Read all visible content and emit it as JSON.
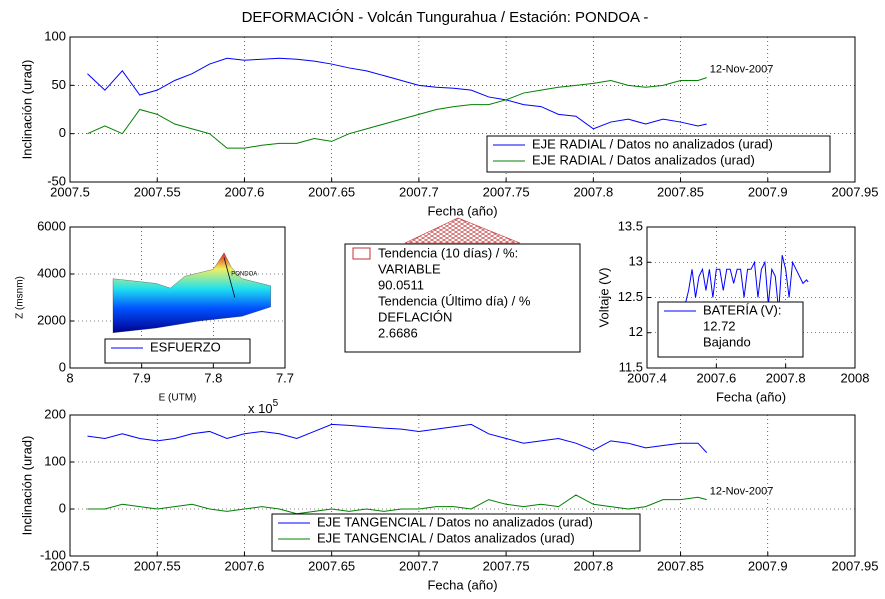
{
  "title": "DEFORMACIÓN - Volcán Tungurahua  /  Estación: PONDOA -",
  "info_box": {
    "legend": "Tendencia (10 días) / %:",
    "lines": [
      "VARIABLE",
      90.0511,
      "Tendencia (Último día) / %",
      "DEFLACIÓN",
      2.6686
    ]
  },
  "chart_data": [
    {
      "type": "line",
      "xlabel": "Fecha (año)",
      "ylabel": "Inclinación (urad)",
      "xlim": [
        2007.5,
        2007.95
      ],
      "xticks": [
        2007.5,
        2007.55,
        2007.6,
        2007.65,
        2007.7,
        2007.75,
        2007.8,
        2007.85,
        2007.9,
        2007.95
      ],
      "ylim": [
        -50,
        100
      ],
      "yticks": [
        -50,
        0,
        50,
        100
      ],
      "grid": true,
      "legend": "lower right",
      "annotation": "12-Nov-2007",
      "x": [
        2007.51,
        2007.52,
        2007.53,
        2007.54,
        2007.55,
        2007.56,
        2007.57,
        2007.58,
        2007.59,
        2007.6,
        2007.61,
        2007.62,
        2007.63,
        2007.64,
        2007.65,
        2007.66,
        2007.67,
        2007.68,
        2007.69,
        2007.7,
        2007.71,
        2007.72,
        2007.73,
        2007.74,
        2007.75,
        2007.76,
        2007.77,
        2007.78,
        2007.79,
        2007.8,
        2007.81,
        2007.82,
        2007.83,
        2007.84,
        2007.85,
        2007.86,
        2007.865
      ],
      "series": [
        {
          "name": "EJE RADIAL / Datos no analizados (urad)",
          "color": "#0000ff",
          "values": [
            62,
            45,
            65,
            40,
            45,
            55,
            62,
            72,
            78,
            76,
            77,
            78,
            77,
            75,
            72,
            68,
            65,
            60,
            55,
            50,
            48,
            47,
            45,
            38,
            35,
            30,
            28,
            20,
            18,
            5,
            12,
            15,
            10,
            15,
            12,
            8,
            10
          ]
        },
        {
          "name": "EJE RADIAL / Datos analizados (urad)",
          "color": "#008000",
          "values": [
            0,
            8,
            0,
            25,
            20,
            10,
            5,
            0,
            -15,
            -15,
            -12,
            -10,
            -10,
            -5,
            -8,
            0,
            5,
            10,
            15,
            20,
            25,
            28,
            30,
            30,
            35,
            42,
            45,
            48,
            50,
            52,
            55,
            50,
            48,
            50,
            55,
            55,
            58
          ]
        }
      ]
    },
    {
      "type": "surface",
      "xlabel": "E (UTM)",
      "ylabel": "Z (msnm)",
      "xlim": [
        8,
        7.7
      ],
      "xticks": [
        8,
        7.9,
        7.8,
        7.7
      ],
      "x_multiplier": {
        "base": "x 10",
        "exponent": "5"
      },
      "ylim": [
        0,
        6000
      ],
      "yticks": [
        0,
        2000,
        4000,
        6000
      ],
      "grid": true,
      "legend": "lower center",
      "annotation": "PONDOA",
      "series": [
        {
          "name": "ESFUERZO",
          "color": "#0000ff"
        }
      ]
    },
    {
      "type": "line",
      "xlabel": "Fecha (año)",
      "ylabel": "Voltaje (V)",
      "xlim": [
        2007.4,
        2008
      ],
      "xticks": [
        2007.4,
        2007.6,
        2007.8,
        2008
      ],
      "ylim": [
        11.5,
        13.5
      ],
      "yticks": [
        11.5,
        12,
        12.5,
        13,
        13.5
      ],
      "grid": true,
      "legend": "lower left",
      "status_lines": [
        12.72,
        "Bajando"
      ],
      "x": [
        2007.51,
        2007.52,
        2007.53,
        2007.54,
        2007.55,
        2007.56,
        2007.57,
        2007.58,
        2007.59,
        2007.6,
        2007.61,
        2007.62,
        2007.63,
        2007.64,
        2007.65,
        2007.66,
        2007.67,
        2007.68,
        2007.69,
        2007.7,
        2007.71,
        2007.72,
        2007.73,
        2007.74,
        2007.75,
        2007.76,
        2007.77,
        2007.78,
        2007.79,
        2007.8,
        2007.81,
        2007.82,
        2007.83,
        2007.84,
        2007.85,
        2007.86,
        2007.865
      ],
      "series": [
        {
          "name": "BATERÍA (V):",
          "color": "#0000ff",
          "values": [
            12.4,
            12.6,
            12.9,
            12.5,
            12.8,
            12.9,
            12.6,
            12.9,
            12.5,
            12.9,
            12.9,
            12.6,
            12.9,
            12.9,
            12.7,
            12.9,
            12.9,
            12.5,
            12.9,
            12.9,
            13.0,
            12.5,
            12.9,
            13.0,
            12.4,
            12.9,
            12.8,
            12.3,
            13.1,
            12.9,
            12.5,
            13.0,
            12.9,
            12.8,
            12.7,
            12.75,
            12.72
          ]
        }
      ]
    },
    {
      "type": "line",
      "xlabel": "Fecha (año)",
      "ylabel": "Inclinación (urad)",
      "xlim": [
        2007.5,
        2007.95
      ],
      "xticks": [
        2007.5,
        2007.55,
        2007.6,
        2007.65,
        2007.7,
        2007.75,
        2007.8,
        2007.85,
        2007.9,
        2007.95
      ],
      "ylim": [
        -100,
        200
      ],
      "yticks": [
        -100,
        0,
        100,
        200
      ],
      "grid": true,
      "legend": "lower center",
      "annotation": "12-Nov-2007",
      "x": [
        2007.51,
        2007.52,
        2007.53,
        2007.54,
        2007.55,
        2007.56,
        2007.57,
        2007.58,
        2007.59,
        2007.6,
        2007.61,
        2007.62,
        2007.63,
        2007.64,
        2007.65,
        2007.66,
        2007.67,
        2007.68,
        2007.69,
        2007.7,
        2007.71,
        2007.72,
        2007.73,
        2007.74,
        2007.75,
        2007.76,
        2007.77,
        2007.78,
        2007.79,
        2007.8,
        2007.81,
        2007.82,
        2007.83,
        2007.84,
        2007.85,
        2007.86,
        2007.865
      ],
      "series": [
        {
          "name": "EJE TANGENCIAL / Datos no analizados (urad)",
          "color": "#0000ff",
          "values": [
            155,
            150,
            160,
            150,
            145,
            150,
            160,
            165,
            150,
            160,
            165,
            160,
            150,
            165,
            180,
            178,
            175,
            172,
            170,
            165,
            170,
            175,
            180,
            160,
            150,
            140,
            145,
            150,
            140,
            125,
            145,
            140,
            130,
            135,
            140,
            140,
            120
          ]
        },
        {
          "name": "EJE TANGENCIAL / Datos analizados (urad)",
          "color": "#008000",
          "values": [
            0,
            0,
            10,
            5,
            0,
            5,
            10,
            0,
            -5,
            0,
            5,
            0,
            -10,
            -5,
            0,
            -5,
            0,
            -5,
            0,
            0,
            5,
            5,
            0,
            20,
            10,
            5,
            10,
            5,
            30,
            10,
            5,
            0,
            5,
            20,
            20,
            25,
            20
          ]
        }
      ]
    }
  ]
}
